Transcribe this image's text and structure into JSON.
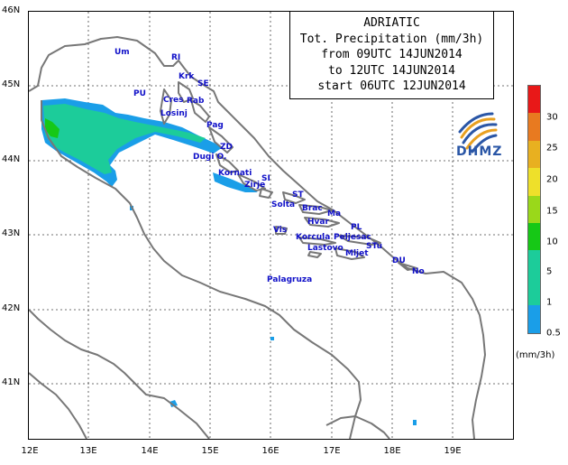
{
  "title": {
    "line1": "ADRIATIC",
    "line2": "Tot. Precipitation (mm/3h)",
    "line3": "from 09UTC 14JUN2014",
    "line4": "to 12UTC 14JUN2014",
    "line5": "start 06UTC 12JUN2014"
  },
  "axes": {
    "latitudes": [
      "46N",
      "45N",
      "44N",
      "43N",
      "42N",
      "41N"
    ],
    "longitudes": [
      "12E",
      "13E",
      "14E",
      "15E",
      "16E",
      "17E",
      "18E",
      "19E"
    ]
  },
  "places": [
    {
      "name": "Um"
    },
    {
      "name": "RI"
    },
    {
      "name": "Krk"
    },
    {
      "name": "SE"
    },
    {
      "name": "PU"
    },
    {
      "name": "Cres"
    },
    {
      "name": "Rab"
    },
    {
      "name": "Losinj"
    },
    {
      "name": "Pag"
    },
    {
      "name": "ZD"
    },
    {
      "name": "Dugi O."
    },
    {
      "name": "Kornati"
    },
    {
      "name": "SI"
    },
    {
      "name": "Zirje"
    },
    {
      "name": "ST"
    },
    {
      "name": "Solta"
    },
    {
      "name": "Brac"
    },
    {
      "name": "Ma"
    },
    {
      "name": "Hvar"
    },
    {
      "name": "PL"
    },
    {
      "name": "Vis"
    },
    {
      "name": "Korcula"
    },
    {
      "name": "Peljesac"
    },
    {
      "name": "Lastovo"
    },
    {
      "name": "STu"
    },
    {
      "name": "Mljet"
    },
    {
      "name": "DU"
    },
    {
      "name": "No"
    },
    {
      "name": "Palagruza"
    }
  ],
  "logo": {
    "text": "DHMZ",
    "icon": "dhmz-logo-icon"
  },
  "legend": {
    "unit": "(mm/3h)",
    "levels": [
      {
        "label": "0.5",
        "color": "#1a9ee8"
      },
      {
        "label": "1",
        "color": "#1ccc9a"
      },
      {
        "label": "5",
        "color": "#16c816"
      },
      {
        "label": "10",
        "color": "#9ad81a"
      },
      {
        "label": "15",
        "color": "#eee02a"
      },
      {
        "label": "20",
        "color": "#e8b020"
      },
      {
        "label": "25",
        "color": "#e87a20"
      },
      {
        "label": "30",
        "color": "#e82020"
      },
      {
        "label": "",
        "color": "#e80000"
      }
    ]
  }
}
